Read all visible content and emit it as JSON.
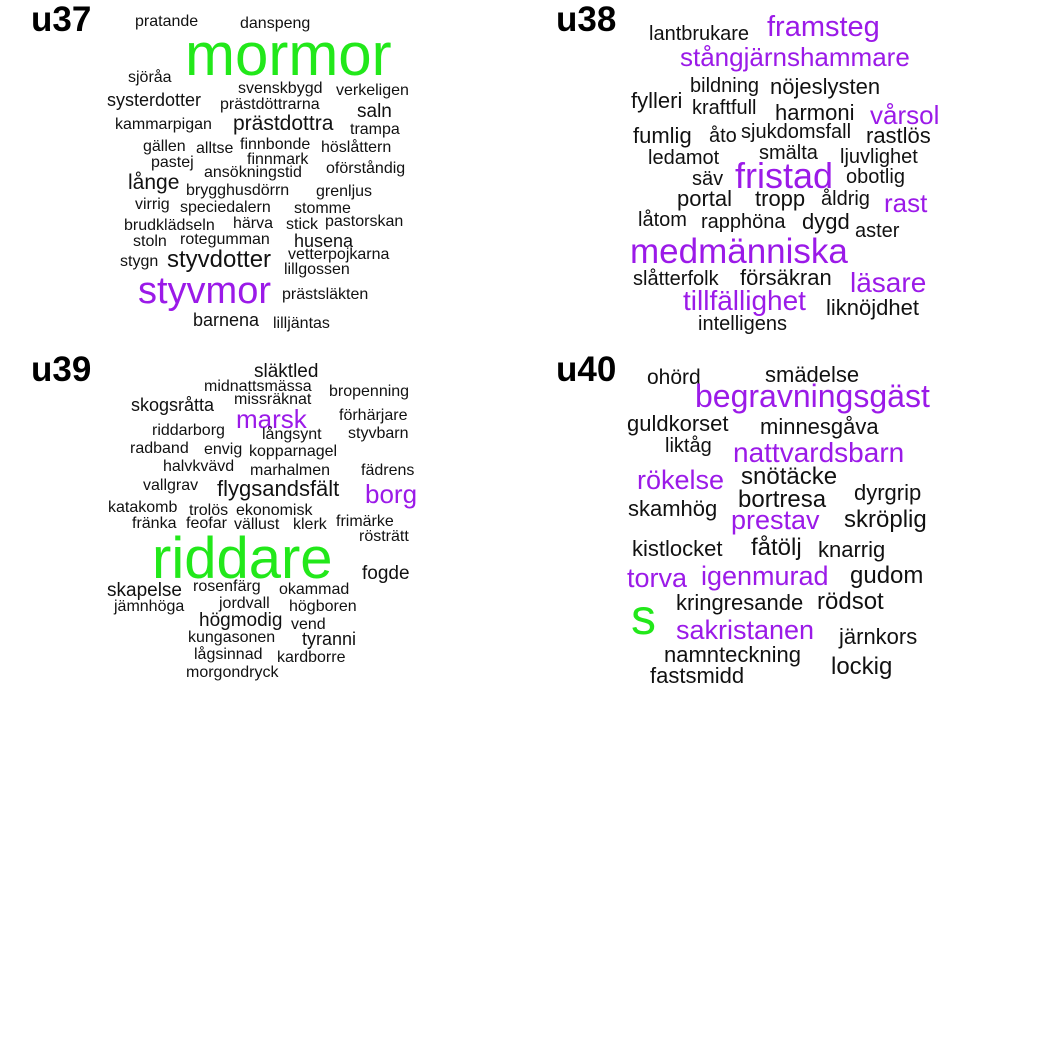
{
  "colors": {
    "black": "#111111",
    "purple": "#9b1ae8",
    "green": "#22e81a"
  },
  "panels": [
    {
      "title": "u37",
      "words": [
        {
          "text": "pratande",
          "c": "black"
        },
        {
          "text": "danspeng",
          "c": "black"
        },
        {
          "text": "mormor",
          "c": "green"
        },
        {
          "text": "sjöråa",
          "c": "black"
        },
        {
          "text": "svenskbygd",
          "c": "black"
        },
        {
          "text": "verkeligen",
          "c": "black"
        },
        {
          "text": "systerdotter",
          "c": "black"
        },
        {
          "text": "prästdöttrarna",
          "c": "black"
        },
        {
          "text": "saln",
          "c": "black"
        },
        {
          "text": "kammarpigan",
          "c": "black"
        },
        {
          "text": "prästdottra",
          "c": "black"
        },
        {
          "text": "trampa",
          "c": "black"
        },
        {
          "text": "gällen",
          "c": "black"
        },
        {
          "text": "alltse",
          "c": "black"
        },
        {
          "text": "finnbonde",
          "c": "black"
        },
        {
          "text": "höslåttern",
          "c": "black"
        },
        {
          "text": "pastej",
          "c": "black"
        },
        {
          "text": "finnmark",
          "c": "black"
        },
        {
          "text": "oförståndig",
          "c": "black"
        },
        {
          "text": "ansökningstid",
          "c": "black"
        },
        {
          "text": "långe",
          "c": "black"
        },
        {
          "text": "brygghusdörrn",
          "c": "black"
        },
        {
          "text": "grenljus",
          "c": "black"
        },
        {
          "text": "virrig",
          "c": "black"
        },
        {
          "text": "speciedalern",
          "c": "black"
        },
        {
          "text": "stomme",
          "c": "black"
        },
        {
          "text": "brudklädseln",
          "c": "black"
        },
        {
          "text": "härva",
          "c": "black"
        },
        {
          "text": "stick",
          "c": "black"
        },
        {
          "text": "pastorskan",
          "c": "black"
        },
        {
          "text": "stoln",
          "c": "black"
        },
        {
          "text": "rotegumman",
          "c": "black"
        },
        {
          "text": "husena",
          "c": "black"
        },
        {
          "text": "vetterpojkarna",
          "c": "black"
        },
        {
          "text": "stygn",
          "c": "black"
        },
        {
          "text": "styvdotter",
          "c": "black"
        },
        {
          "text": "lillgossen",
          "c": "black"
        },
        {
          "text": "styvmor",
          "c": "purple"
        },
        {
          "text": "prästsläkten",
          "c": "black"
        },
        {
          "text": "barnena",
          "c": "black"
        },
        {
          "text": "lilljäntas",
          "c": "black"
        }
      ]
    },
    {
      "title": "u38",
      "words": [
        {
          "text": "lantbrukare",
          "c": "black"
        },
        {
          "text": "framsteg",
          "c": "purple"
        },
        {
          "text": "stångjärnshammare",
          "c": "purple"
        },
        {
          "text": "bildning",
          "c": "black"
        },
        {
          "text": "nöjeslysten",
          "c": "black"
        },
        {
          "text": "fylleri",
          "c": "black"
        },
        {
          "text": "kraftfull",
          "c": "black"
        },
        {
          "text": "harmoni",
          "c": "black"
        },
        {
          "text": "vårsol",
          "c": "purple"
        },
        {
          "text": "fumlig",
          "c": "black"
        },
        {
          "text": "åto",
          "c": "black"
        },
        {
          "text": "sjukdomsfall",
          "c": "black"
        },
        {
          "text": "rastlös",
          "c": "black"
        },
        {
          "text": "ledamot",
          "c": "black"
        },
        {
          "text": "smälta",
          "c": "black"
        },
        {
          "text": "ljuvlighet",
          "c": "black"
        },
        {
          "text": "fristad",
          "c": "purple"
        },
        {
          "text": "säv",
          "c": "black"
        },
        {
          "text": "obotlig",
          "c": "black"
        },
        {
          "text": "portal",
          "c": "black"
        },
        {
          "text": "tropp",
          "c": "black"
        },
        {
          "text": "åldrig",
          "c": "black"
        },
        {
          "text": "rast",
          "c": "purple"
        },
        {
          "text": "låtom",
          "c": "black"
        },
        {
          "text": "rapphöna",
          "c": "black"
        },
        {
          "text": "dygd",
          "c": "black"
        },
        {
          "text": "aster",
          "c": "black"
        },
        {
          "text": "medmänniska",
          "c": "purple"
        },
        {
          "text": "slåtterfolk",
          "c": "black"
        },
        {
          "text": "försäkran",
          "c": "black"
        },
        {
          "text": "läsare",
          "c": "purple"
        },
        {
          "text": "tillfällighet",
          "c": "purple"
        },
        {
          "text": "liknöjdhet",
          "c": "black"
        },
        {
          "text": "intelligens",
          "c": "black"
        }
      ]
    },
    {
      "title": "u39",
      "words": [
        {
          "text": "släktled",
          "c": "black"
        },
        {
          "text": "midnattsmässa",
          "c": "black"
        },
        {
          "text": "bropenning",
          "c": "black"
        },
        {
          "text": "skogsråtta",
          "c": "black"
        },
        {
          "text": "missräknat",
          "c": "black"
        },
        {
          "text": "marsk",
          "c": "purple"
        },
        {
          "text": "förhärjare",
          "c": "black"
        },
        {
          "text": "riddarborg",
          "c": "black"
        },
        {
          "text": "långsynt",
          "c": "black"
        },
        {
          "text": "styvbarn",
          "c": "black"
        },
        {
          "text": "radband",
          "c": "black"
        },
        {
          "text": "envig",
          "c": "black"
        },
        {
          "text": "kopparnagel",
          "c": "black"
        },
        {
          "text": "halvkvävd",
          "c": "black"
        },
        {
          "text": "marhalmen",
          "c": "black"
        },
        {
          "text": "fädrens",
          "c": "black"
        },
        {
          "text": "vallgrav",
          "c": "black"
        },
        {
          "text": "flygsandsfält",
          "c": "black"
        },
        {
          "text": "borg",
          "c": "purple"
        },
        {
          "text": "katakomb",
          "c": "black"
        },
        {
          "text": "trolös",
          "c": "black"
        },
        {
          "text": "ekonomisk",
          "c": "black"
        },
        {
          "text": "fränka",
          "c": "black"
        },
        {
          "text": "feofar",
          "c": "black"
        },
        {
          "text": "vällust",
          "c": "black"
        },
        {
          "text": "klerk",
          "c": "black"
        },
        {
          "text": "frimärke",
          "c": "black"
        },
        {
          "text": "rösträtt",
          "c": "black"
        },
        {
          "text": "riddare",
          "c": "green"
        },
        {
          "text": "fogde",
          "c": "black"
        },
        {
          "text": "skapelse",
          "c": "black"
        },
        {
          "text": "rosenfärg",
          "c": "black"
        },
        {
          "text": "okammad",
          "c": "black"
        },
        {
          "text": "jämnhöga",
          "c": "black"
        },
        {
          "text": "jordvall",
          "c": "black"
        },
        {
          "text": "högboren",
          "c": "black"
        },
        {
          "text": "högmodig",
          "c": "black"
        },
        {
          "text": "vend",
          "c": "black"
        },
        {
          "text": "kungasonen",
          "c": "black"
        },
        {
          "text": "tyranni",
          "c": "black"
        },
        {
          "text": "lågsinnad",
          "c": "black"
        },
        {
          "text": "kardborre",
          "c": "black"
        },
        {
          "text": "morgondryck",
          "c": "black"
        }
      ]
    },
    {
      "title": "u40",
      "words": [
        {
          "text": "ohörd",
          "c": "black"
        },
        {
          "text": "smädelse",
          "c": "black"
        },
        {
          "text": "begravningsgäst",
          "c": "purple"
        },
        {
          "text": "guldkorset",
          "c": "black"
        },
        {
          "text": "minnesgåva",
          "c": "black"
        },
        {
          "text": "liktåg",
          "c": "black"
        },
        {
          "text": "nattvardsbarn",
          "c": "purple"
        },
        {
          "text": "rökelse",
          "c": "purple"
        },
        {
          "text": "snötäcke",
          "c": "black"
        },
        {
          "text": "dyrgrip",
          "c": "black"
        },
        {
          "text": "bortresa",
          "c": "black"
        },
        {
          "text": "skamhög",
          "c": "black"
        },
        {
          "text": "prestav",
          "c": "purple"
        },
        {
          "text": "skröplig",
          "c": "black"
        },
        {
          "text": "kistlocket",
          "c": "black"
        },
        {
          "text": "fåtölj",
          "c": "black"
        },
        {
          "text": "knarrig",
          "c": "black"
        },
        {
          "text": "torva",
          "c": "purple"
        },
        {
          "text": "igenmurad",
          "c": "purple"
        },
        {
          "text": "gudom",
          "c": "black"
        },
        {
          "text": "kringresande",
          "c": "black"
        },
        {
          "text": "rödsot",
          "c": "black"
        },
        {
          "text": "s",
          "c": "green"
        },
        {
          "text": "sakristanen",
          "c": "purple"
        },
        {
          "text": "järnkors",
          "c": "black"
        },
        {
          "text": "namnteckning",
          "c": "black"
        },
        {
          "text": "lockig",
          "c": "black"
        },
        {
          "text": "fastsmidd",
          "c": "black"
        }
      ]
    }
  ]
}
